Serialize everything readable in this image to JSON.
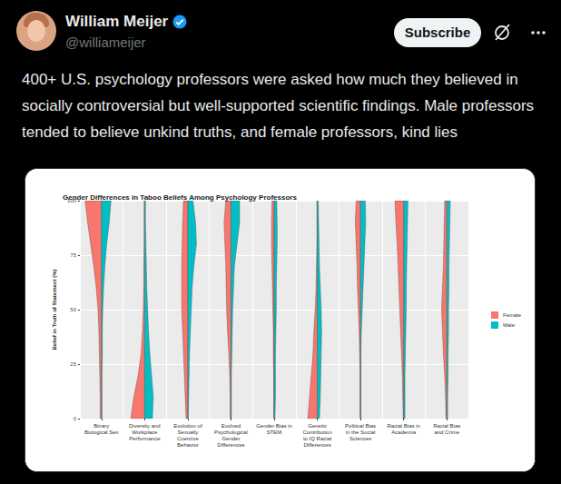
{
  "post": {
    "author": "William Meijer",
    "handle": "@williameijer",
    "button": "Subscribe",
    "text": "400+ U.S. psychology professors were asked how much they believed in socially controversial but well-supported scientific findings. Male professors tended to believe unkind truths, and female professors, kind lies"
  },
  "chart_data": {
    "type": "violin",
    "title": "Gender Differences in Taboo Beliefs Among Psychology Professors",
    "y_label": "Belief in Truth of Statement (%)",
    "categories": [
      "Binary Biological Sex",
      "Diversity and Workplace Performance",
      "Evolution of Sexually Coercive Behavior",
      "Evolved Psychological Gender Differences",
      "Gender Bias in STEM",
      "Genetic Contribution to IQ Racial Differences",
      "Political Bias in the Social Sciences",
      "Racial Bias in Academia",
      "Racial Bias and Crime"
    ],
    "belief_levels": [
      0,
      10,
      20,
      30,
      40,
      50,
      60,
      70,
      80,
      90,
      100
    ],
    "series": [
      {
        "name": "Female",
        "color": "#F8766D",
        "density": [
          [
            0.03,
            0.03,
            0.04,
            0.05,
            0.06,
            0.08,
            0.12,
            0.18,
            0.25,
            0.32,
            0.38
          ],
          [
            0.32,
            0.25,
            0.15,
            0.08,
            0.05,
            0.03,
            0.02,
            0.02,
            0.01,
            0.01,
            0.01
          ],
          [
            0.04,
            0.06,
            0.08,
            0.1,
            0.12,
            0.14,
            0.14,
            0.14,
            0.13,
            0.12,
            0.1
          ],
          [
            0.02,
            0.02,
            0.03,
            0.05,
            0.08,
            0.1,
            0.11,
            0.12,
            0.14,
            0.16,
            0.12
          ],
          [
            0.01,
            0.01,
            0.01,
            0.02,
            0.02,
            0.03,
            0.04,
            0.05,
            0.06,
            0.06,
            0.05
          ],
          [
            0.22,
            0.18,
            0.14,
            0.1,
            0.08,
            0.05,
            0.03,
            0.02,
            0.01,
            0.01,
            0.01
          ],
          [
            0.01,
            0.01,
            0.01,
            0.02,
            0.03,
            0.05,
            0.07,
            0.08,
            0.1,
            0.12,
            0.1
          ],
          [
            0.01,
            0.02,
            0.03,
            0.05,
            0.07,
            0.09,
            0.11,
            0.13,
            0.15,
            0.18,
            0.2
          ],
          [
            0.02,
            0.03,
            0.05,
            0.08,
            0.1,
            0.12,
            0.1,
            0.08,
            0.07,
            0.06,
            0.05
          ]
        ]
      },
      {
        "name": "Male",
        "color": "#00BFC4",
        "density": [
          [
            0.01,
            0.01,
            0.01,
            0.02,
            0.02,
            0.03,
            0.05,
            0.08,
            0.12,
            0.18,
            0.22
          ],
          [
            0.18,
            0.2,
            0.16,
            0.12,
            0.09,
            0.07,
            0.05,
            0.04,
            0.03,
            0.02,
            0.02
          ],
          [
            0.01,
            0.02,
            0.03,
            0.04,
            0.06,
            0.08,
            0.1,
            0.14,
            0.2,
            0.18,
            0.12
          ],
          [
            0.01,
            0.01,
            0.01,
            0.02,
            0.03,
            0.04,
            0.06,
            0.08,
            0.14,
            0.2,
            0.2
          ],
          [
            0.02,
            0.03,
            0.03,
            0.03,
            0.04,
            0.05,
            0.05,
            0.06,
            0.07,
            0.07,
            0.06
          ],
          [
            0.05,
            0.07,
            0.08,
            0.09,
            0.1,
            0.09,
            0.07,
            0.05,
            0.04,
            0.03,
            0.02
          ],
          [
            0.01,
            0.01,
            0.01,
            0.01,
            0.02,
            0.04,
            0.06,
            0.08,
            0.1,
            0.12,
            0.11
          ],
          [
            0.03,
            0.03,
            0.03,
            0.04,
            0.05,
            0.06,
            0.06,
            0.07,
            0.08,
            0.09,
            0.1
          ],
          [
            0.02,
            0.02,
            0.03,
            0.03,
            0.04,
            0.04,
            0.05,
            0.05,
            0.06,
            0.07,
            0.08
          ]
        ]
      }
    ],
    "ylim": [
      0,
      100
    ],
    "yticks": [
      0,
      25,
      50,
      75,
      100
    ],
    "grid": true,
    "legend": "right"
  }
}
